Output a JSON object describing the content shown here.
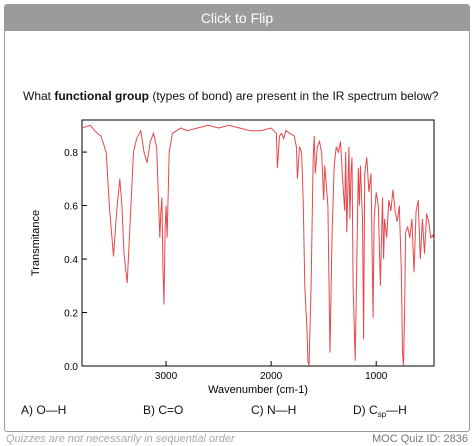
{
  "flip_button": {
    "label": "Click to Flip"
  },
  "question": {
    "prefix": "What ",
    "emphasis": "functional group",
    "suffix": " (types of bond) are present in the IR spectrum below?"
  },
  "chart_data": {
    "type": "line",
    "xlabel": "Wavenumber (cm-1)",
    "ylabel": "Transmitance",
    "xlim": [
      3800,
      450
    ],
    "ylim": [
      0.0,
      0.92
    ],
    "x_ticks": [
      "3000",
      "2000",
      "1000"
    ],
    "x_tick_values": [
      3000,
      2000,
      1000
    ],
    "y_ticks": [
      "0.0",
      "0.2",
      "0.4",
      "0.6",
      "0.8"
    ],
    "y_tick_values": [
      0.0,
      0.2,
      0.4,
      0.6,
      0.8
    ],
    "line_color": "#e8474a",
    "series": [
      {
        "x": [
          3800,
          3720,
          3680,
          3620,
          3570,
          3540,
          3500,
          3470,
          3440,
          3420,
          3400,
          3370,
          3340,
          3310,
          3280,
          3240,
          3210,
          3180,
          3150,
          3120,
          3090,
          3070,
          3060,
          3050,
          3040,
          3030,
          3020,
          3010,
          3000,
          2990,
          2970,
          2940,
          2900,
          2860,
          2800,
          2700,
          2600,
          2500,
          2400,
          2300,
          2200,
          2100,
          2000,
          1950,
          1940,
          1920,
          1900,
          1880,
          1860,
          1820,
          1780,
          1760,
          1750,
          1730,
          1710,
          1695,
          1680,
          1660,
          1650,
          1640,
          1620,
          1600,
          1590,
          1580,
          1560,
          1540,
          1520,
          1500,
          1490,
          1480,
          1460,
          1440,
          1420,
          1400,
          1380,
          1360,
          1340,
          1320,
          1300,
          1290,
          1280,
          1260,
          1250,
          1240,
          1230,
          1220,
          1200,
          1180,
          1170,
          1160,
          1150,
          1130,
          1120,
          1110,
          1090,
          1070,
          1050,
          1030,
          1020,
          1000,
          980,
          960,
          940,
          930,
          920,
          900,
          880,
          860,
          840,
          820,
          800,
          780,
          760,
          750,
          740,
          730,
          720,
          700,
          680,
          660,
          640,
          620,
          600,
          580,
          560,
          540,
          520,
          500,
          480,
          460,
          450
        ],
        "y": [
          0.89,
          0.9,
          0.88,
          0.86,
          0.8,
          0.6,
          0.41,
          0.58,
          0.7,
          0.6,
          0.42,
          0.31,
          0.55,
          0.8,
          0.85,
          0.88,
          0.8,
          0.76,
          0.84,
          0.87,
          0.82,
          0.6,
          0.48,
          0.57,
          0.63,
          0.37,
          0.23,
          0.5,
          0.6,
          0.48,
          0.8,
          0.87,
          0.88,
          0.89,
          0.88,
          0.89,
          0.9,
          0.89,
          0.9,
          0.89,
          0.88,
          0.88,
          0.89,
          0.87,
          0.74,
          0.86,
          0.87,
          0.85,
          0.88,
          0.87,
          0.86,
          0.82,
          0.7,
          0.82,
          0.8,
          0.62,
          0.3,
          0.14,
          0.02,
          0.0,
          0.3,
          0.78,
          0.86,
          0.72,
          0.82,
          0.84,
          0.8,
          0.62,
          0.75,
          0.7,
          0.6,
          0.05,
          0.5,
          0.75,
          0.82,
          0.8,
          0.84,
          0.7,
          0.58,
          0.8,
          0.5,
          0.82,
          0.55,
          0.72,
          0.78,
          0.3,
          0.02,
          0.5,
          0.74,
          0.6,
          0.75,
          0.55,
          0.1,
          0.72,
          0.78,
          0.65,
          0.72,
          0.18,
          0.55,
          0.65,
          0.6,
          0.3,
          0.63,
          0.4,
          0.55,
          0.48,
          0.62,
          0.58,
          0.66,
          0.58,
          0.54,
          0.6,
          0.35,
          0.05,
          0.0,
          0.2,
          0.5,
          0.52,
          0.48,
          0.55,
          0.35,
          0.58,
          0.62,
          0.4,
          0.55,
          0.42,
          0.57,
          0.54,
          0.48,
          0.49,
          0.47
        ]
      }
    ]
  },
  "choices": [
    {
      "letter": "A)",
      "main": "O—H",
      "sub": "",
      "tail": ""
    },
    {
      "letter": "B)",
      "main": "C=O",
      "sub": "",
      "tail": ""
    },
    {
      "letter": "C)",
      "main": "N—H",
      "sub": "",
      "tail": ""
    },
    {
      "letter": "D)",
      "main": "C",
      "sub": "sp",
      "tail": "—H"
    }
  ],
  "footer": {
    "note": "Quizzes are not necessarily in sequential order",
    "quiz_id": "MOC Quiz ID: 2836"
  }
}
